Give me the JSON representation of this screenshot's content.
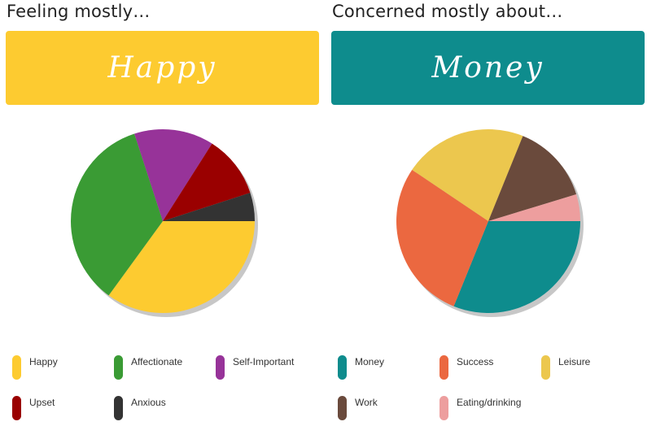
{
  "panels": [
    {
      "heading": "Feeling mostly…",
      "banner": {
        "text": "Happy",
        "color": "#FDCB30"
      }
    },
    {
      "heading": "Concerned mostly about…",
      "banner": {
        "text": "Money",
        "color": "#0E8C8D"
      }
    }
  ],
  "chart_data": [
    {
      "type": "pie",
      "series": [
        {
          "name": "Happy",
          "value": 35,
          "color": "#FDCB30"
        },
        {
          "name": "Affectionate",
          "value": 35,
          "color": "#3A9B34"
        },
        {
          "name": "Self-Important",
          "value": 14,
          "color": "#973399"
        },
        {
          "name": "Upset",
          "value": 11,
          "color": "#9A0000"
        },
        {
          "name": "Anxious",
          "value": 5,
          "color": "#333333"
        }
      ],
      "legend": "bottom"
    },
    {
      "type": "pie",
      "series": [
        {
          "name": "Money",
          "value": 33,
          "color": "#0E8C8D"
        },
        {
          "name": "Success",
          "value": 30,
          "color": "#EB6840"
        },
        {
          "name": "Leisure",
          "value": 23,
          "color": "#ECC74E"
        },
        {
          "name": "Work",
          "value": 15,
          "color": "#6A4A3C"
        },
        {
          "name": "Eating/drinking",
          "value": 5,
          "color": "#ED9E9E"
        }
      ],
      "legend": "bottom"
    }
  ]
}
